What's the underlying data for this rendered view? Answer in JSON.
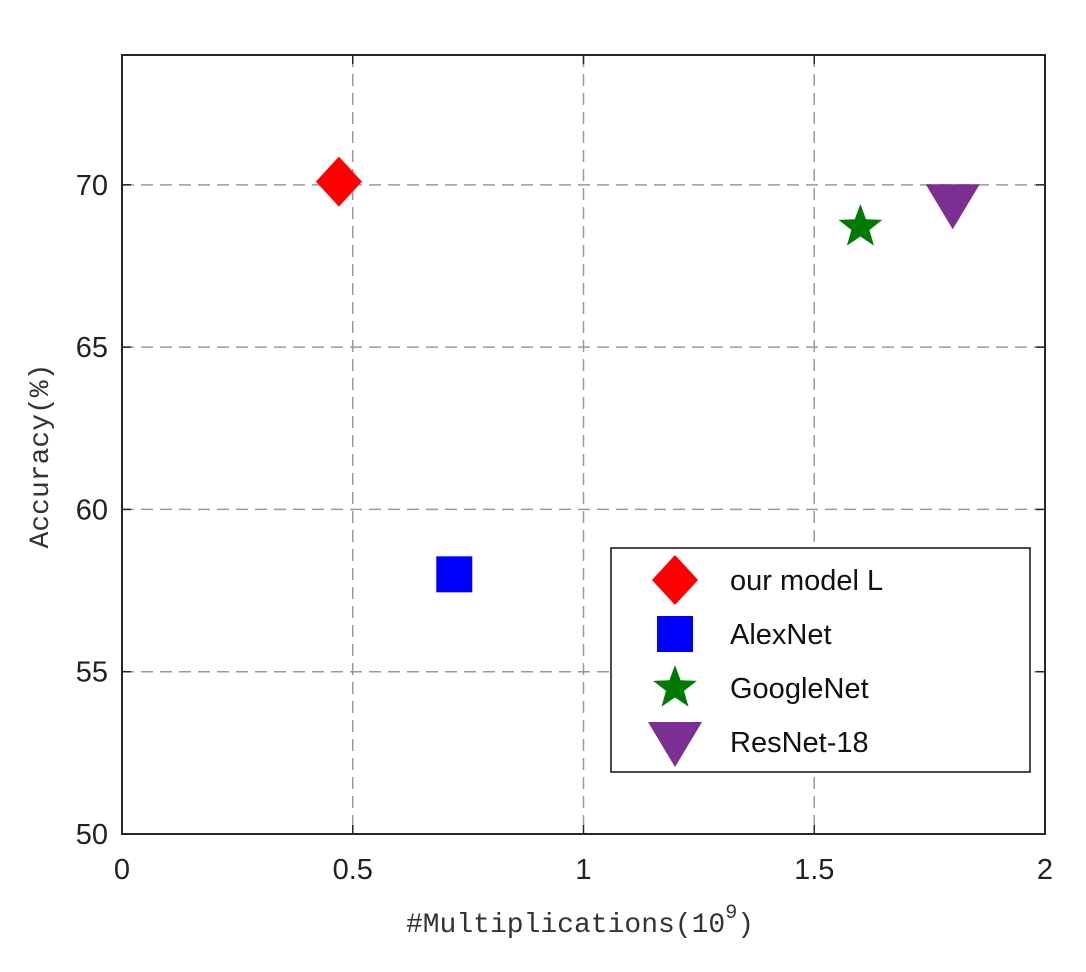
{
  "chart_data": {
    "type": "scatter",
    "xlabel": "#Multiplications(10",
    "xlabel_exponent": "9",
    "xlabel_suffix": ")",
    "ylabel": "Accuracy(%)",
    "xlim": [
      0,
      2
    ],
    "ylim": [
      50,
      74
    ],
    "x_ticks": [
      0,
      0.5,
      1,
      1.5,
      2
    ],
    "x_tick_labels": [
      "0",
      "0.5",
      "1",
      "1.5",
      "2"
    ],
    "y_ticks": [
      50,
      55,
      60,
      65,
      70
    ],
    "y_tick_labels": [
      "50",
      "55",
      "60",
      "65",
      "70"
    ],
    "grid": true,
    "legend_position": "bottom-right",
    "series": [
      {
        "name": "our model L",
        "marker": "diamond",
        "color": "#ff0000",
        "x": 0.47,
        "y": 70.1
      },
      {
        "name": "AlexNet",
        "marker": "square",
        "color": "#0000ff",
        "x": 0.72,
        "y": 58.0
      },
      {
        "name": "GoogleNet",
        "marker": "star",
        "color": "#007a00",
        "x": 1.6,
        "y": 68.7
      },
      {
        "name": "ResNet-18",
        "marker": "triangle-down",
        "color": "#7b2f92",
        "x": 1.8,
        "y": 69.4
      }
    ]
  }
}
